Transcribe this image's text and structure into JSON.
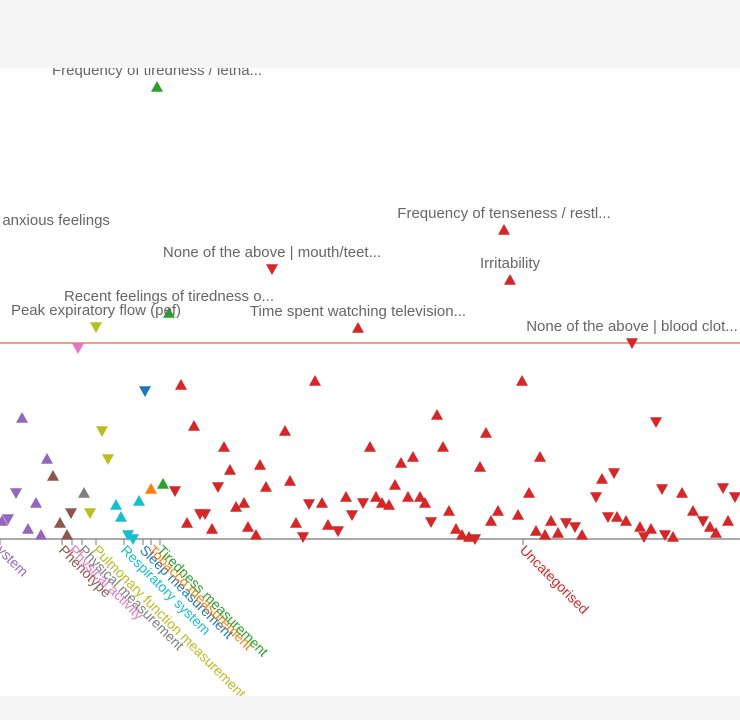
{
  "chart_data": {
    "type": "scatter",
    "colors": {
      "threshold": "#ef7b63",
      "axis": "#777777",
      "annotation": "#666666",
      "Nervous system": "#9467bd",
      "Phenotype": "#8c564b",
      "Physical activity": "#e377c2",
      "Physical measurement": "#7f7f7f",
      "Pulmonary function measurement": "#bcbd22",
      "Respiratory system": "#17becf",
      "Sleep measurement": "#1f77b4",
      "Tobacco measurement": "#ff7f0e",
      "Tiredness measurement": "#2ca02c",
      "Uncategorised": "#d62728"
    },
    "categories": [
      {
        "label": "ystem",
        "color": "#9467bd",
        "x": 0
      },
      {
        "label": "Phenotype",
        "color": "#8c564b",
        "x": 62
      },
      {
        "label": "Physical activity",
        "color": "#e377c2",
        "x": 72
      },
      {
        "label": "Physical measurement",
        "color": "#7f7f7f",
        "x": 82
      },
      {
        "label": "Pulmonary function measurement",
        "color": "#bcbd22",
        "x": 96
      },
      {
        "label": "Respiratory system",
        "color": "#17becf",
        "x": 124
      },
      {
        "label": "Sleep measurement",
        "color": "#1f77b4",
        "x": 143
      },
      {
        "label": "Tobacco measurement",
        "color": "#ff7f0e",
        "x": 151
      },
      {
        "label": "Tiredness measurement",
        "color": "#2ca02c",
        "x": 160
      },
      {
        "label": "Uncategorised",
        "color": "#d62728",
        "x": 523
      }
    ],
    "annotations": [
      {
        "text": "Frequency of tiredness / letha...",
        "x": 157,
        "y": 452
      },
      {
        "text": "/ anxious feelings",
        "x": 0,
        "y": 302
      },
      {
        "text": "Frequency of tenseness / restl...",
        "x": 504,
        "y": 309
      },
      {
        "text": "None of the above | mouth/teet...",
        "x": 272,
        "y": 270
      },
      {
        "text": "Irritability",
        "x": 510,
        "y": 259
      },
      {
        "text": "Recent feelings of tiredness o...",
        "x": 169,
        "y": 226
      },
      {
        "text": "Peak expiratory flow (pef)",
        "x": 96,
        "y": 212
      },
      {
        "text": "Time spent watching television...",
        "x": 358,
        "y": 211
      },
      {
        "text": "None of the above | blood clot...",
        "x": 632,
        "y": 196
      }
    ],
    "points": [
      {
        "x": 157,
        "y": 452,
        "dir": "up",
        "cat": "Tiredness measurement"
      },
      {
        "x": 504,
        "y": 309,
        "dir": "up",
        "cat": "Uncategorised"
      },
      {
        "x": 272,
        "y": 270,
        "dir": "down",
        "cat": "Uncategorised"
      },
      {
        "x": 510,
        "y": 259,
        "dir": "up",
        "cat": "Uncategorised"
      },
      {
        "x": 169,
        "y": 226,
        "dir": "up",
        "cat": "Tiredness measurement"
      },
      {
        "x": 96,
        "y": 212,
        "dir": "down",
        "cat": "Pulmonary function measurement"
      },
      {
        "x": 358,
        "y": 211,
        "dir": "up",
        "cat": "Uncategorised"
      },
      {
        "x": 632,
        "y": 196,
        "dir": "down",
        "cat": "Uncategorised"
      },
      {
        "x": 78,
        "y": 191,
        "dir": "down",
        "cat": "Physical activity"
      },
      {
        "x": 145,
        "y": 148,
        "dir": "down",
        "cat": "Sleep measurement"
      },
      {
        "x": 181,
        "y": 154,
        "dir": "up",
        "cat": "Uncategorised"
      },
      {
        "x": 315,
        "y": 158,
        "dir": "up",
        "cat": "Uncategorised"
      },
      {
        "x": 522,
        "y": 158,
        "dir": "up",
        "cat": "Uncategorised"
      },
      {
        "x": 22,
        "y": 121,
        "dir": "up",
        "cat": "Nervous system"
      },
      {
        "x": 437,
        "y": 124,
        "dir": "up",
        "cat": "Uncategorised"
      },
      {
        "x": 656,
        "y": 117,
        "dir": "down",
        "cat": "Uncategorised"
      },
      {
        "x": 194,
        "y": 113,
        "dir": "up",
        "cat": "Uncategorised"
      },
      {
        "x": 102,
        "y": 108,
        "dir": "down",
        "cat": "Pulmonary function measurement"
      },
      {
        "x": 285,
        "y": 108,
        "dir": "up",
        "cat": "Uncategorised"
      },
      {
        "x": 486,
        "y": 106,
        "dir": "up",
        "cat": "Uncategorised"
      },
      {
        "x": 224,
        "y": 92,
        "dir": "up",
        "cat": "Uncategorised"
      },
      {
        "x": 370,
        "y": 92,
        "dir": "up",
        "cat": "Uncategorised"
      },
      {
        "x": 443,
        "y": 92,
        "dir": "up",
        "cat": "Uncategorised"
      },
      {
        "x": 47,
        "y": 80,
        "dir": "up",
        "cat": "Nervous system"
      },
      {
        "x": 108,
        "y": 80,
        "dir": "down",
        "cat": "Pulmonary function measurement"
      },
      {
        "x": 540,
        "y": 82,
        "dir": "up",
        "cat": "Uncategorised"
      },
      {
        "x": 260,
        "y": 74,
        "dir": "up",
        "cat": "Uncategorised"
      },
      {
        "x": 401,
        "y": 76,
        "dir": "up",
        "cat": "Uncategorised"
      },
      {
        "x": 413,
        "y": 82,
        "dir": "up",
        "cat": "Uncategorised"
      },
      {
        "x": 230,
        "y": 69,
        "dir": "up",
        "cat": "Uncategorised"
      },
      {
        "x": 480,
        "y": 72,
        "dir": "up",
        "cat": "Uncategorised"
      },
      {
        "x": 53,
        "y": 63,
        "dir": "up",
        "cat": "Phenotype"
      },
      {
        "x": 614,
        "y": 66,
        "dir": "down",
        "cat": "Uncategorised"
      },
      {
        "x": 602,
        "y": 60,
        "dir": "up",
        "cat": "Uncategorised"
      },
      {
        "x": 290,
        "y": 58,
        "dir": "up",
        "cat": "Uncategorised"
      },
      {
        "x": 163,
        "y": 55,
        "dir": "up",
        "cat": "Tiredness measurement"
      },
      {
        "x": 218,
        "y": 52,
        "dir": "down",
        "cat": "Uncategorised"
      },
      {
        "x": 266,
        "y": 52,
        "dir": "up",
        "cat": "Uncategorised"
      },
      {
        "x": 395,
        "y": 54,
        "dir": "up",
        "cat": "Uncategorised"
      },
      {
        "x": 151,
        "y": 50,
        "dir": "up",
        "cat": "Tobacco measurement"
      },
      {
        "x": 175,
        "y": 48,
        "dir": "down",
        "cat": "Uncategorised"
      },
      {
        "x": 662,
        "y": 50,
        "dir": "down",
        "cat": "Uncategorised"
      },
      {
        "x": 723,
        "y": 51,
        "dir": "down",
        "cat": "Uncategorised"
      },
      {
        "x": 16,
        "y": 46,
        "dir": "down",
        "cat": "Nervous system"
      },
      {
        "x": 84,
        "y": 46,
        "dir": "up",
        "cat": "Physical measurement"
      },
      {
        "x": 529,
        "y": 46,
        "dir": "up",
        "cat": "Uncategorised"
      },
      {
        "x": 682,
        "y": 46,
        "dir": "up",
        "cat": "Uncategorised"
      },
      {
        "x": 346,
        "y": 42,
        "dir": "up",
        "cat": "Uncategorised"
      },
      {
        "x": 376,
        "y": 42,
        "dir": "up",
        "cat": "Uncategorised"
      },
      {
        "x": 408,
        "y": 42,
        "dir": "up",
        "cat": "Uncategorised"
      },
      {
        "x": 420,
        "y": 42,
        "dir": "up",
        "cat": "Uncategorised"
      },
      {
        "x": 596,
        "y": 42,
        "dir": "down",
        "cat": "Uncategorised"
      },
      {
        "x": 735,
        "y": 42,
        "dir": "down",
        "cat": "Uncategorised"
      },
      {
        "x": 139,
        "y": 38,
        "dir": "up",
        "cat": "Respiratory system"
      },
      {
        "x": 244,
        "y": 36,
        "dir": "up",
        "cat": "Uncategorised"
      },
      {
        "x": 309,
        "y": 35,
        "dir": "down",
        "cat": "Uncategorised"
      },
      {
        "x": 382,
        "y": 36,
        "dir": "up",
        "cat": "Uncategorised"
      },
      {
        "x": 36,
        "y": 36,
        "dir": "up",
        "cat": "Nervous system"
      },
      {
        "x": 116,
        "y": 34,
        "dir": "up",
        "cat": "Respiratory system"
      },
      {
        "x": 322,
        "y": 36,
        "dir": "up",
        "cat": "Uncategorised"
      },
      {
        "x": 363,
        "y": 36,
        "dir": "down",
        "cat": "Uncategorised"
      },
      {
        "x": 389,
        "y": 34,
        "dir": "up",
        "cat": "Uncategorised"
      },
      {
        "x": 425,
        "y": 36,
        "dir": "up",
        "cat": "Uncategorised"
      },
      {
        "x": 236,
        "y": 32,
        "dir": "up",
        "cat": "Uncategorised"
      },
      {
        "x": 90,
        "y": 26,
        "dir": "down",
        "cat": "Pulmonary function measurement"
      },
      {
        "x": 71,
        "y": 26,
        "dir": "down",
        "cat": "Phenotype"
      },
      {
        "x": 200,
        "y": 25,
        "dir": "down",
        "cat": "Uncategorised"
      },
      {
        "x": 205,
        "y": 25,
        "dir": "down",
        "cat": "Uncategorised"
      },
      {
        "x": 352,
        "y": 24,
        "dir": "down",
        "cat": "Uncategorised"
      },
      {
        "x": 449,
        "y": 28,
        "dir": "up",
        "cat": "Uncategorised"
      },
      {
        "x": 498,
        "y": 28,
        "dir": "up",
        "cat": "Uncategorised"
      },
      {
        "x": 518,
        "y": 24,
        "dir": "up",
        "cat": "Uncategorised"
      },
      {
        "x": 608,
        "y": 22,
        "dir": "down",
        "cat": "Uncategorised"
      },
      {
        "x": 617,
        "y": 22,
        "dir": "up",
        "cat": "Uncategorised"
      },
      {
        "x": 693,
        "y": 28,
        "dir": "up",
        "cat": "Uncategorised"
      },
      {
        "x": 8,
        "y": 20,
        "dir": "down",
        "cat": "Nervous system"
      },
      {
        "x": 121,
        "y": 22,
        "dir": "up",
        "cat": "Respiratory system"
      },
      {
        "x": 2,
        "y": 18,
        "dir": "up",
        "cat": "Nervous system"
      },
      {
        "x": 60,
        "y": 16,
        "dir": "up",
        "cat": "Phenotype"
      },
      {
        "x": 187,
        "y": 16,
        "dir": "up",
        "cat": "Uncategorised"
      },
      {
        "x": 296,
        "y": 16,
        "dir": "up",
        "cat": "Uncategorised"
      },
      {
        "x": 328,
        "y": 14,
        "dir": "up",
        "cat": "Uncategorised"
      },
      {
        "x": 431,
        "y": 17,
        "dir": "down",
        "cat": "Uncategorised"
      },
      {
        "x": 491,
        "y": 18,
        "dir": "up",
        "cat": "Uncategorised"
      },
      {
        "x": 551,
        "y": 18,
        "dir": "up",
        "cat": "Uncategorised"
      },
      {
        "x": 566,
        "y": 16,
        "dir": "down",
        "cat": "Uncategorised"
      },
      {
        "x": 626,
        "y": 18,
        "dir": "up",
        "cat": "Uncategorised"
      },
      {
        "x": 703,
        "y": 18,
        "dir": "down",
        "cat": "Uncategorised"
      },
      {
        "x": 728,
        "y": 18,
        "dir": "up",
        "cat": "Uncategorised"
      },
      {
        "x": 28,
        "y": 10,
        "dir": "up",
        "cat": "Nervous system"
      },
      {
        "x": 212,
        "y": 10,
        "dir": "up",
        "cat": "Uncategorised"
      },
      {
        "x": 248,
        "y": 12,
        "dir": "up",
        "cat": "Uncategorised"
      },
      {
        "x": 338,
        "y": 8,
        "dir": "down",
        "cat": "Uncategorised"
      },
      {
        "x": 456,
        "y": 10,
        "dir": "up",
        "cat": "Uncategorised"
      },
      {
        "x": 536,
        "y": 8,
        "dir": "up",
        "cat": "Uncategorised"
      },
      {
        "x": 575,
        "y": 12,
        "dir": "down",
        "cat": "Uncategorised"
      },
      {
        "x": 640,
        "y": 12,
        "dir": "up",
        "cat": "Uncategorised"
      },
      {
        "x": 651,
        "y": 10,
        "dir": "up",
        "cat": "Uncategorised"
      },
      {
        "x": 710,
        "y": 12,
        "dir": "up",
        "cat": "Uncategorised"
      },
      {
        "x": 41,
        "y": 4,
        "dir": "up",
        "cat": "Nervous system"
      },
      {
        "x": 67,
        "y": 4,
        "dir": "up",
        "cat": "Phenotype"
      },
      {
        "x": 128,
        "y": 4,
        "dir": "down",
        "cat": "Respiratory system"
      },
      {
        "x": 256,
        "y": 4,
        "dir": "up",
        "cat": "Uncategorised"
      },
      {
        "x": 303,
        "y": 2,
        "dir": "down",
        "cat": "Uncategorised"
      },
      {
        "x": 462,
        "y": 4,
        "dir": "up",
        "cat": "Uncategorised"
      },
      {
        "x": 469,
        "y": 2,
        "dir": "up",
        "cat": "Uncategorised"
      },
      {
        "x": 475,
        "y": 0,
        "dir": "down",
        "cat": "Uncategorised"
      },
      {
        "x": 545,
        "y": 4,
        "dir": "up",
        "cat": "Uncategorised"
      },
      {
        "x": 558,
        "y": 6,
        "dir": "up",
        "cat": "Uncategorised"
      },
      {
        "x": 582,
        "y": 4,
        "dir": "up",
        "cat": "Uncategorised"
      },
      {
        "x": 644,
        "y": 2,
        "dir": "down",
        "cat": "Uncategorised"
      },
      {
        "x": 665,
        "y": 4,
        "dir": "down",
        "cat": "Uncategorised"
      },
      {
        "x": 673,
        "y": 2,
        "dir": "up",
        "cat": "Uncategorised"
      },
      {
        "x": 716,
        "y": 6,
        "dir": "up",
        "cat": "Uncategorised"
      },
      {
        "x": 133,
        "y": 0,
        "dir": "down",
        "cat": "Respiratory system"
      }
    ],
    "threshold_y": 196,
    "xlim": [
      0,
      740
    ],
    "ylim": [
      0,
      460
    ],
    "grid": false,
    "title": "",
    "xlabel": "",
    "ylabel": ""
  }
}
